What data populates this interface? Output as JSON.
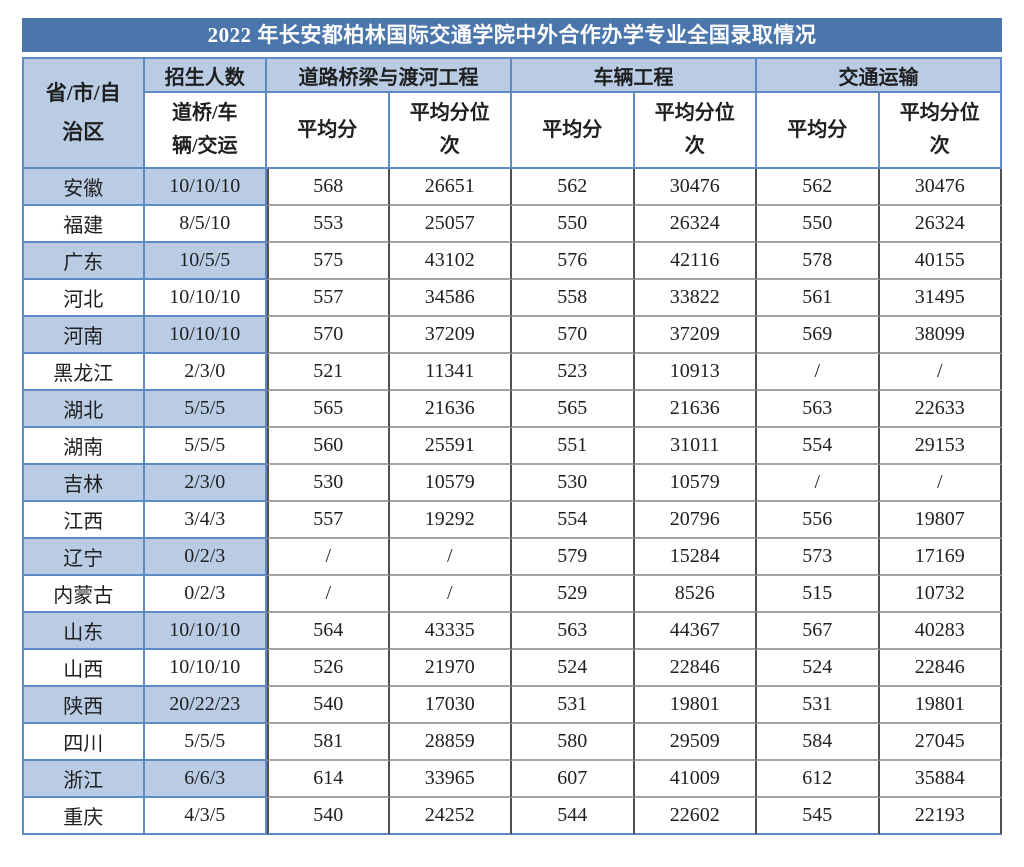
{
  "title": "2022 年长安都柏林国际交通学院中外合作办学专业全国录取情况",
  "colors": {
    "title_bar": "#4b76ac",
    "highlight_cell": "#b9cce4",
    "border_blue": "#5d89c4",
    "border_dark": "#4f4f4f",
    "border_gray": "#a3a3a3"
  },
  "table": {
    "province_header": "省/市/自\n治区",
    "enrollment_header": "招生人数",
    "quota_sub_header": "道桥/车\n辆/交运",
    "programs": [
      "道路桥梁与渡河工程",
      "车辆工程",
      "交通运输"
    ],
    "avg_score_header": "平均分",
    "avg_rank_header": "平均分位\n次",
    "rows": [
      {
        "province": "安徽",
        "quota": "10/10/10",
        "values": [
          "568",
          "26651",
          "562",
          "30476",
          "562",
          "30476"
        ]
      },
      {
        "province": "福建",
        "quota": "8/5/10",
        "values": [
          "553",
          "25057",
          "550",
          "26324",
          "550",
          "26324"
        ]
      },
      {
        "province": "广东",
        "quota": "10/5/5",
        "values": [
          "575",
          "43102",
          "576",
          "42116",
          "578",
          "40155"
        ]
      },
      {
        "province": "河北",
        "quota": "10/10/10",
        "values": [
          "557",
          "34586",
          "558",
          "33822",
          "561",
          "31495"
        ]
      },
      {
        "province": "河南",
        "quota": "10/10/10",
        "values": [
          "570",
          "37209",
          "570",
          "37209",
          "569",
          "38099"
        ]
      },
      {
        "province": "黑龙江",
        "quota": "2/3/0",
        "values": [
          "521",
          "11341",
          "523",
          "10913",
          "/",
          "/"
        ]
      },
      {
        "province": "湖北",
        "quota": "5/5/5",
        "values": [
          "565",
          "21636",
          "565",
          "21636",
          "563",
          "22633"
        ]
      },
      {
        "province": "湖南",
        "quota": "5/5/5",
        "values": [
          "560",
          "25591",
          "551",
          "31011",
          "554",
          "29153"
        ]
      },
      {
        "province": "吉林",
        "quota": "2/3/0",
        "values": [
          "530",
          "10579",
          "530",
          "10579",
          "/",
          "/"
        ]
      },
      {
        "province": "江西",
        "quota": "3/4/3",
        "values": [
          "557",
          "19292",
          "554",
          "20796",
          "556",
          "19807"
        ]
      },
      {
        "province": "辽宁",
        "quota": "0/2/3",
        "values": [
          "/",
          "/",
          "579",
          "15284",
          "573",
          "17169"
        ]
      },
      {
        "province": "内蒙古",
        "quota": "0/2/3",
        "values": [
          "/",
          "/",
          "529",
          "8526",
          "515",
          "10732"
        ]
      },
      {
        "province": "山东",
        "quota": "10/10/10",
        "values": [
          "564",
          "43335",
          "563",
          "44367",
          "567",
          "40283"
        ]
      },
      {
        "province": "山西",
        "quota": "10/10/10",
        "values": [
          "526",
          "21970",
          "524",
          "22846",
          "524",
          "22846"
        ]
      },
      {
        "province": "陕西",
        "quota": "20/22/23",
        "values": [
          "540",
          "17030",
          "531",
          "19801",
          "531",
          "19801"
        ]
      },
      {
        "province": "四川",
        "quota": "5/5/5",
        "values": [
          "581",
          "28859",
          "580",
          "29509",
          "584",
          "27045"
        ]
      },
      {
        "province": "浙江",
        "quota": "6/6/3",
        "values": [
          "614",
          "33965",
          "607",
          "41009",
          "612",
          "35884"
        ]
      },
      {
        "province": "重庆",
        "quota": "4/3/5",
        "values": [
          "540",
          "24252",
          "544",
          "22602",
          "545",
          "22193"
        ]
      }
    ]
  }
}
